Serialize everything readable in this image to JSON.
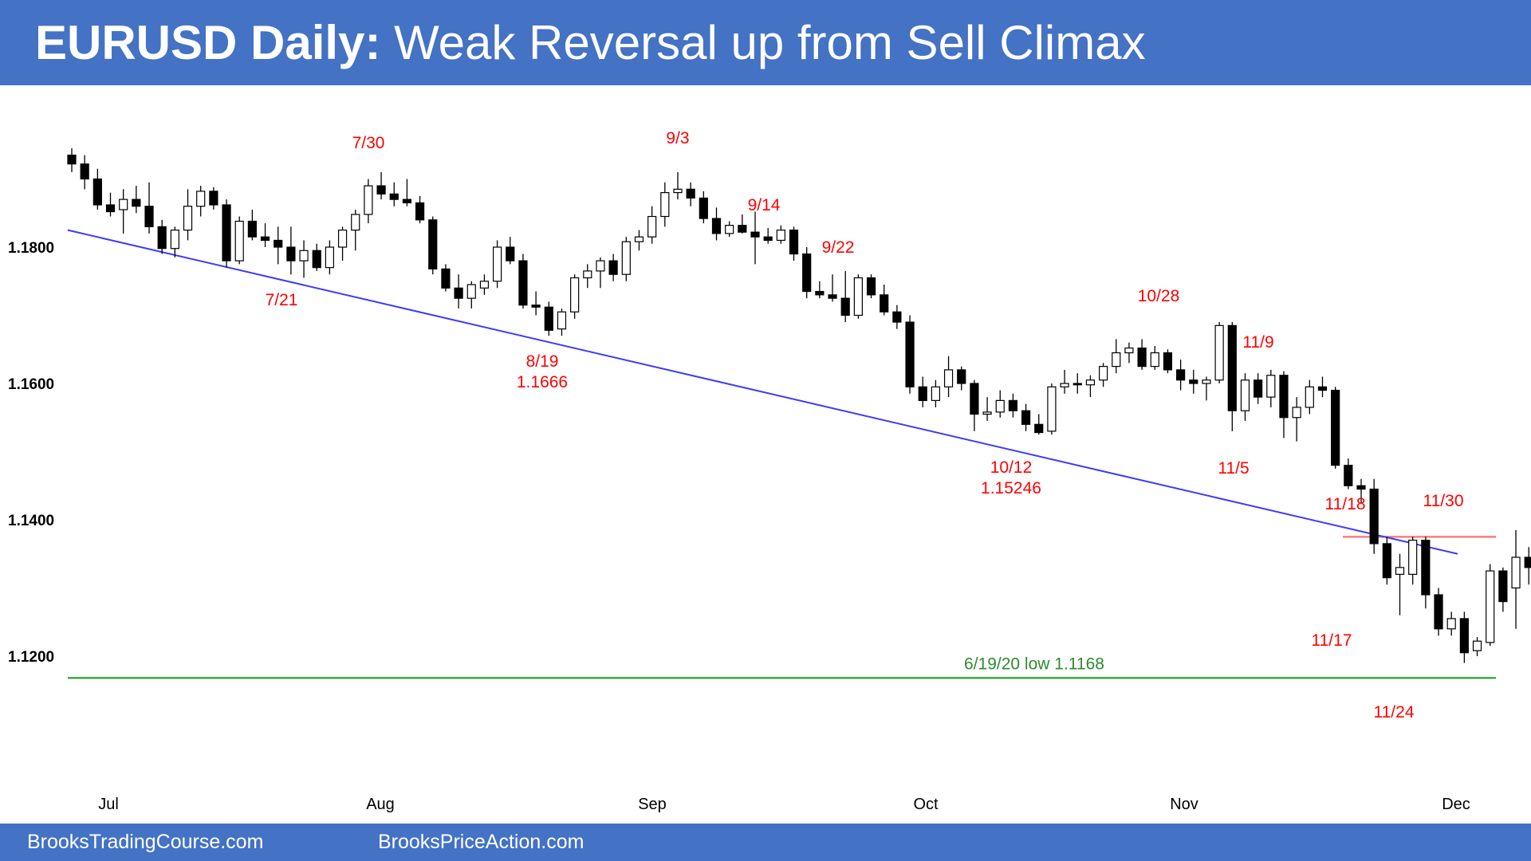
{
  "header": {
    "title_bold": "EURUSD Daily:",
    "title_rest": " Weak Reversal up from Sell Climax"
  },
  "footer": {
    "left": "BrooksTradingCourse.com",
    "right": "BrooksPriceAction.com"
  },
  "colors": {
    "band": "#4472C4",
    "trendline": "#3b3bff",
    "resistance": "#ff7070",
    "support": "#2ca02c",
    "annotation": "#ff0000",
    "bear_candle": "#000000",
    "bull_candle": "#ffffff"
  },
  "chart_data": {
    "type": "candlestick",
    "y_ticks": [
      "1.1800",
      "1.1600",
      "1.1400",
      "1.1200"
    ],
    "ylim": [
      1.105,
      1.199
    ],
    "x_ticks": [
      "Jul",
      "Aug",
      "Sep",
      "Oct",
      "Nov",
      "Dec"
    ],
    "annotations": [
      {
        "text": "7/30",
        "bar": 22
      },
      {
        "text": "7/21",
        "bar": 16
      },
      {
        "text": "9/3",
        "bar": 47
      },
      {
        "text": "8/19",
        "bar": 37
      },
      {
        "text": "1.1666",
        "bar": 37
      },
      {
        "text": "9/14",
        "bar": 55
      },
      {
        "text": "9/22",
        "bar": 61
      },
      {
        "text": "10/28",
        "bar": 87
      },
      {
        "text": "10/12",
        "bar": 76
      },
      {
        "text": "1.15246",
        "bar": 76
      },
      {
        "text": "11/9",
        "bar": 96
      },
      {
        "text": "11/5",
        "bar": 94
      },
      {
        "text": "11/18",
        "bar": 102
      },
      {
        "text": "11/17",
        "bar": 101
      },
      {
        "text": "11/30",
        "bar": 110
      },
      {
        "text": "11/24",
        "bar": 106
      }
    ],
    "support_line": {
      "label": "6/19/20 low 1.1168",
      "value": 1.1168
    },
    "resistance_line": {
      "value": 1.1375
    },
    "trendline": {
      "start": 1.1825,
      "end": 1.135
    },
    "candles": [
      [
        1.1935,
        1.1945,
        1.191,
        1.1922
      ],
      [
        1.1922,
        1.1935,
        1.1885,
        1.19
      ],
      [
        1.19,
        1.1915,
        1.1855,
        1.1862
      ],
      [
        1.1862,
        1.188,
        1.1845,
        1.1852
      ],
      [
        1.1855,
        1.1885,
        1.182,
        1.187
      ],
      [
        1.187,
        1.189,
        1.185,
        1.186
      ],
      [
        1.186,
        1.1895,
        1.182,
        1.183
      ],
      [
        1.183,
        1.184,
        1.179,
        1.1798
      ],
      [
        1.1798,
        1.183,
        1.1785,
        1.1825
      ],
      [
        1.1825,
        1.1885,
        1.181,
        1.186
      ],
      [
        1.186,
        1.189,
        1.1845,
        1.1882
      ],
      [
        1.1882,
        1.1888,
        1.1855,
        1.1862
      ],
      [
        1.1862,
        1.187,
        1.177,
        1.178
      ],
      [
        1.178,
        1.1845,
        1.1775,
        1.1838
      ],
      [
        1.1838,
        1.1855,
        1.181,
        1.1815
      ],
      [
        1.1815,
        1.1835,
        1.18,
        1.181
      ],
      [
        1.181,
        1.183,
        1.1775,
        1.18
      ],
      [
        1.18,
        1.183,
        1.176,
        1.178
      ],
      [
        1.178,
        1.181,
        1.1755,
        1.1795
      ],
      [
        1.1795,
        1.1805,
        1.1765,
        1.177
      ],
      [
        1.177,
        1.181,
        1.176,
        1.18
      ],
      [
        1.18,
        1.183,
        1.178,
        1.1825
      ],
      [
        1.1825,
        1.1855,
        1.1795,
        1.1848
      ],
      [
        1.1848,
        1.19,
        1.1835,
        1.189
      ],
      [
        1.189,
        1.191,
        1.187,
        1.1878
      ],
      [
        1.1878,
        1.1895,
        1.186,
        1.187
      ],
      [
        1.187,
        1.19,
        1.186,
        1.1865
      ],
      [
        1.1865,
        1.1875,
        1.1835,
        1.184
      ],
      [
        1.184,
        1.1845,
        1.176,
        1.1768
      ],
      [
        1.1768,
        1.1775,
        1.1735,
        1.174
      ],
      [
        1.174,
        1.176,
        1.171,
        1.1725
      ],
      [
        1.1725,
        1.175,
        1.171,
        1.1745
      ],
      [
        1.174,
        1.176,
        1.173,
        1.175
      ],
      [
        1.175,
        1.181,
        1.174,
        1.18
      ],
      [
        1.18,
        1.1815,
        1.1775,
        1.178
      ],
      [
        1.178,
        1.179,
        1.171,
        1.1715
      ],
      [
        1.1715,
        1.1735,
        1.17,
        1.1712
      ],
      [
        1.1712,
        1.172,
        1.167,
        1.1678
      ],
      [
        1.168,
        1.171,
        1.167,
        1.1705
      ],
      [
        1.1705,
        1.176,
        1.1695,
        1.1755
      ],
      [
        1.1755,
        1.1775,
        1.174,
        1.1765
      ],
      [
        1.1765,
        1.1785,
        1.174,
        1.178
      ],
      [
        1.178,
        1.179,
        1.175,
        1.176
      ],
      [
        1.176,
        1.1815,
        1.175,
        1.1808
      ],
      [
        1.1808,
        1.1825,
        1.1795,
        1.1815
      ],
      [
        1.1815,
        1.186,
        1.1805,
        1.1845
      ],
      [
        1.1845,
        1.1895,
        1.183,
        1.188
      ],
      [
        1.188,
        1.191,
        1.187,
        1.1885
      ],
      [
        1.1885,
        1.1895,
        1.186,
        1.1872
      ],
      [
        1.1872,
        1.1882,
        1.1835,
        1.1842
      ],
      [
        1.1842,
        1.1858,
        1.181,
        1.182
      ],
      [
        1.182,
        1.1838,
        1.1815,
        1.1832
      ],
      [
        1.1832,
        1.1848,
        1.182,
        1.1822
      ],
      [
        1.1822,
        1.1852,
        1.1775,
        1.1815
      ],
      [
        1.1815,
        1.1828,
        1.1805,
        1.181
      ],
      [
        1.181,
        1.1832,
        1.1805,
        1.1825
      ],
      [
        1.1825,
        1.183,
        1.178,
        1.179
      ],
      [
        1.179,
        1.18,
        1.1725,
        1.1735
      ],
      [
        1.1735,
        1.175,
        1.1725,
        1.173
      ],
      [
        1.173,
        1.176,
        1.172,
        1.1725
      ],
      [
        1.1725,
        1.1765,
        1.169,
        1.17
      ],
      [
        1.17,
        1.176,
        1.1695,
        1.1755
      ],
      [
        1.1755,
        1.176,
        1.1725,
        1.173
      ],
      [
        1.173,
        1.1745,
        1.17,
        1.1705
      ],
      [
        1.1705,
        1.1715,
        1.168,
        1.169
      ],
      [
        1.169,
        1.17,
        1.1585,
        1.1595
      ],
      [
        1.1595,
        1.161,
        1.1565,
        1.1575
      ],
      [
        1.1575,
        1.1605,
        1.1565,
        1.1595
      ],
      [
        1.1595,
        1.164,
        1.158,
        1.162
      ],
      [
        1.162,
        1.1625,
        1.159,
        1.16
      ],
      [
        1.16,
        1.1605,
        1.153,
        1.1555
      ],
      [
        1.1555,
        1.158,
        1.1545,
        1.1558
      ],
      [
        1.1558,
        1.159,
        1.155,
        1.1575
      ],
      [
        1.1575,
        1.1585,
        1.155,
        1.156
      ],
      [
        1.156,
        1.157,
        1.153,
        1.154
      ],
      [
        1.154,
        1.1555,
        1.1525,
        1.1528
      ],
      [
        1.153,
        1.16,
        1.1525,
        1.1595
      ],
      [
        1.1595,
        1.162,
        1.1585,
        1.16
      ],
      [
        1.16,
        1.1615,
        1.1585,
        1.1598
      ],
      [
        1.1598,
        1.1612,
        1.158,
        1.1605
      ],
      [
        1.1605,
        1.163,
        1.1595,
        1.1625
      ],
      [
        1.1625,
        1.1665,
        1.1615,
        1.1645
      ],
      [
        1.1645,
        1.166,
        1.163,
        1.1652
      ],
      [
        1.1652,
        1.1665,
        1.162,
        1.1625
      ],
      [
        1.1625,
        1.1655,
        1.162,
        1.1645
      ],
      [
        1.1645,
        1.165,
        1.1615,
        1.162
      ],
      [
        1.162,
        1.1635,
        1.159,
        1.1605
      ],
      [
        1.1605,
        1.162,
        1.1585,
        1.16
      ],
      [
        1.16,
        1.161,
        1.1575,
        1.1605
      ],
      [
        1.1605,
        1.169,
        1.16,
        1.1685
      ],
      [
        1.1685,
        1.169,
        1.153,
        1.156
      ],
      [
        1.156,
        1.1615,
        1.1545,
        1.1605
      ],
      [
        1.1605,
        1.1615,
        1.157,
        1.158
      ],
      [
        1.158,
        1.162,
        1.1565,
        1.1612
      ],
      [
        1.1612,
        1.1618,
        1.152,
        1.155
      ],
      [
        1.155,
        1.158,
        1.1515,
        1.1565
      ],
      [
        1.1565,
        1.1605,
        1.1555,
        1.1595
      ],
      [
        1.1595,
        1.161,
        1.158,
        1.159
      ],
      [
        1.159,
        1.1595,
        1.1475,
        1.148
      ],
      [
        1.148,
        1.149,
        1.1445,
        1.145
      ],
      [
        1.145,
        1.146,
        1.1425,
        1.1445
      ],
      [
        1.1445,
        1.146,
        1.135,
        1.1365
      ],
      [
        1.1365,
        1.1375,
        1.1305,
        1.1315
      ],
      [
        1.132,
        1.135,
        1.126,
        1.133
      ],
      [
        1.132,
        1.1375,
        1.1305,
        1.137
      ],
      [
        1.137,
        1.1375,
        1.127,
        1.129
      ],
      [
        1.129,
        1.13,
        1.123,
        1.124
      ],
      [
        1.124,
        1.1265,
        1.123,
        1.1255
      ],
      [
        1.1255,
        1.1265,
        1.119,
        1.1205
      ],
      [
        1.1208,
        1.1228,
        1.12,
        1.1222
      ],
      [
        1.122,
        1.1335,
        1.1215,
        1.1325
      ],
      [
        1.1325,
        1.133,
        1.1265,
        1.128
      ],
      [
        1.13,
        1.1385,
        1.124,
        1.1345
      ],
      [
        1.1345,
        1.136,
        1.1305,
        1.133
      ]
    ]
  }
}
